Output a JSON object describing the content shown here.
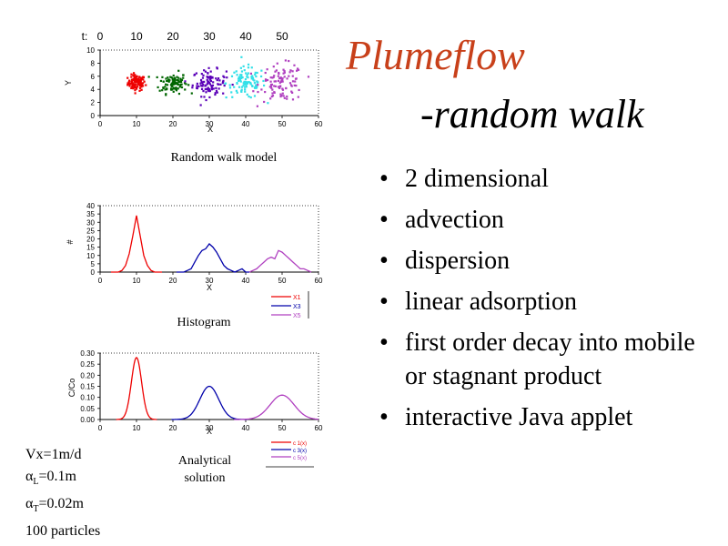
{
  "title": {
    "line1": "Plumeflow",
    "line2": "-random walk"
  },
  "bullets": [
    "2 dimensional",
    "advection",
    "dispersion",
    "linear adsorption",
    "first order decay into mobile or stagnant product",
    "interactive Java applet"
  ],
  "captions": {
    "scatter": "Random walk model",
    "histogram": "Histogram",
    "analytical_1": "Analytical",
    "analytical_2": "solution"
  },
  "params": {
    "vx": "Vx=1m/d",
    "aL_sym": "α",
    "aL_sub": "L",
    "aL_val": "=0.1m",
    "aT_sym": "α",
    "aT_sub": "T",
    "aT_val": "=0.02m",
    "particles": "100 particles"
  },
  "colors": {
    "title": "#c8401a",
    "t10": "#ee0000",
    "t20": "#006600",
    "t30": "#5b00b8",
    "t40": "#33e0e8",
    "t50": "#b040c0",
    "h1": "#ee0000",
    "h3": "#0000aa",
    "h5": "#b040c0",
    "a1": "#ee0000",
    "a3": "#0000aa",
    "a5": "#b040c0"
  },
  "chart_data": [
    {
      "type": "scatter",
      "title": "Random walk model",
      "xlabel": "X",
      "ylabel": "Y",
      "xlim": [
        0,
        60
      ],
      "ylim": [
        0,
        10
      ],
      "xticks": [
        0,
        10,
        20,
        30,
        40,
        50,
        60
      ],
      "yticks": [
        0,
        2,
        4,
        6,
        8,
        10
      ],
      "time_label": "t:",
      "time_ticks": [
        "0",
        "10",
        "20",
        "30",
        "40",
        "50"
      ],
      "time_tick_x": [
        0,
        10,
        20,
        30,
        40,
        50
      ],
      "clusters": [
        {
          "t": 10,
          "center": [
            10,
            5
          ],
          "spread": [
            1.2,
            0.6
          ],
          "n": 100,
          "color_key": "t10"
        },
        {
          "t": 20,
          "center": [
            20,
            5
          ],
          "spread": [
            1.9,
            0.8
          ],
          "n": 100,
          "color_key": "t20"
        },
        {
          "t": 30,
          "center": [
            30,
            5
          ],
          "spread": [
            2.3,
            1.0
          ],
          "n": 100,
          "color_key": "t30"
        },
        {
          "t": 40,
          "center": [
            40,
            5
          ],
          "spread": [
            2.7,
            1.2
          ],
          "n": 100,
          "color_key": "t40"
        },
        {
          "t": 50,
          "center": [
            50,
            5
          ],
          "spread": [
            3.0,
            1.4
          ],
          "n": 100,
          "color_key": "t50"
        }
      ]
    },
    {
      "type": "line",
      "title": "Histogram",
      "xlabel": "X",
      "ylabel": "#",
      "xlim": [
        0,
        60
      ],
      "ylim": [
        0,
        40
      ],
      "xticks": [
        0,
        10,
        20,
        30,
        40,
        50,
        60
      ],
      "yticks": [
        0,
        5,
        10,
        15,
        20,
        25,
        30,
        35,
        40
      ],
      "series": [
        {
          "name": "X1",
          "color_key": "h1",
          "x": [
            3,
            4,
            5,
            6,
            7,
            8,
            9,
            10,
            11,
            12,
            13,
            14,
            15,
            16,
            17
          ],
          "y": [
            0,
            0,
            0,
            1,
            4,
            11,
            22,
            34,
            22,
            10,
            4,
            1,
            0,
            0,
            0
          ]
        },
        {
          "name": "X3",
          "color_key": "h3",
          "x": [
            21,
            22,
            23,
            24,
            25,
            26,
            27,
            28,
            29,
            30,
            31,
            32,
            33,
            34,
            35,
            36,
            37,
            38,
            39,
            40,
            41
          ],
          "y": [
            0,
            0,
            0,
            1,
            2,
            6,
            10,
            13,
            14,
            17,
            15,
            12,
            8,
            4,
            2,
            1,
            0,
            1,
            2,
            0,
            0
          ]
        },
        {
          "name": "X5",
          "color_key": "h5",
          "x": [
            41,
            42,
            43,
            44,
            45,
            46,
            47,
            48,
            49,
            50,
            51,
            52,
            53,
            54,
            55,
            56,
            57,
            58
          ],
          "y": [
            0,
            1,
            2,
            4,
            6,
            8,
            9,
            8,
            13,
            12,
            10,
            8,
            6,
            4,
            2,
            2,
            1,
            0
          ]
        }
      ],
      "legend": "right"
    },
    {
      "type": "line",
      "title": "Analytical solution",
      "xlabel": "X",
      "ylabel": "C/Co",
      "xlim": [
        0,
        60
      ],
      "ylim": [
        0,
        0.3
      ],
      "xticks": [
        0,
        10,
        20,
        30,
        40,
        50,
        60
      ],
      "yticks": [
        "0.00",
        "0.05",
        "0.10",
        "0.15",
        "0.20",
        "0.25",
        "0.30"
      ],
      "series": [
        {
          "name": "c 1(x)",
          "color_key": "a1",
          "mean": 10,
          "peak": 0.28,
          "sigma": 1.4
        },
        {
          "name": "c 3(x)",
          "color_key": "a3",
          "mean": 30,
          "peak": 0.15,
          "sigma": 2.6
        },
        {
          "name": "c 5(x)",
          "color_key": "a5",
          "mean": 50,
          "peak": 0.11,
          "sigma": 3.3
        }
      ],
      "legend": "right"
    }
  ]
}
